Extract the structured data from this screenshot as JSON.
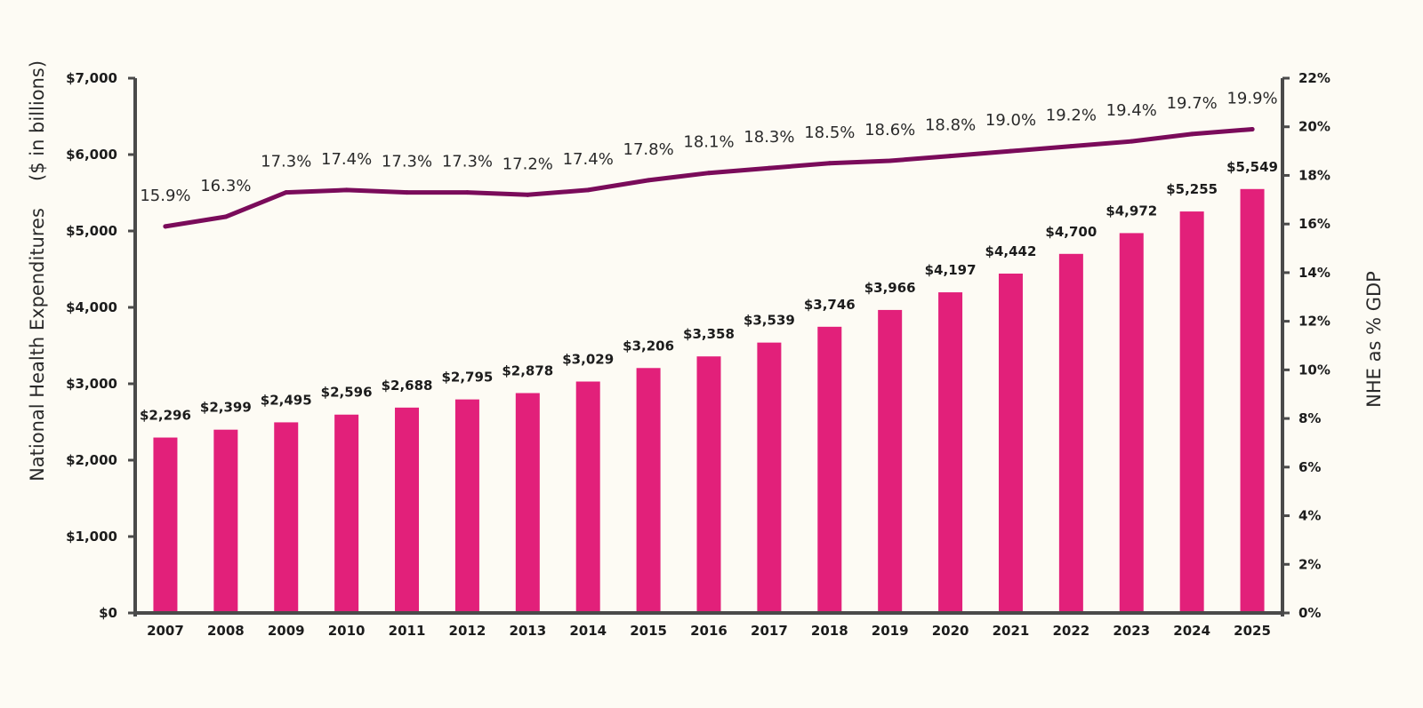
{
  "chart_data": {
    "type": "bar",
    "title": "",
    "categories": [
      "2007",
      "2008",
      "2009",
      "2010",
      "2011",
      "2012",
      "2013",
      "2014",
      "2015",
      "2016",
      "2017",
      "2018",
      "2019",
      "2020",
      "2021",
      "2022",
      "2023",
      "2024",
      "2025"
    ],
    "series": [
      {
        "type": "bar",
        "axis": "left",
        "values": [
          2296,
          2399,
          2495,
          2596,
          2688,
          2795,
          2878,
          3029,
          3206,
          3358,
          3539,
          3746,
          3966,
          4197,
          4442,
          4700,
          4972,
          5255,
          5549
        ],
        "labels": [
          "$2,296",
          "$2,399",
          "$2,495",
          "$2,596",
          "$2,688",
          "$2,795",
          "$2,878",
          "$3,029",
          "$3,206",
          "$3,358",
          "$3,539",
          "$3,746",
          "$3,966",
          "$4,197",
          "$4,442",
          "$4,700",
          "$4,972",
          "$5,255",
          "$5,549"
        ],
        "color": "#e2207a"
      },
      {
        "type": "line",
        "axis": "right",
        "values": [
          15.9,
          16.3,
          17.3,
          17.4,
          17.3,
          17.3,
          17.2,
          17.4,
          17.8,
          18.1,
          18.3,
          18.5,
          18.6,
          18.8,
          19.0,
          19.2,
          19.4,
          19.7,
          19.9
        ],
        "labels": [
          "15.9%",
          "16.3%",
          "17.3%",
          "17.4%",
          "17.3%",
          "17.3%",
          "17.2%",
          "17.4%",
          "17.8%",
          "18.1%",
          "18.3%",
          "18.5%",
          "18.6%",
          "18.8%",
          "19.0%",
          "19.2%",
          "19.4%",
          "19.7%",
          "19.9%"
        ],
        "color": "#7a0b5a"
      }
    ],
    "ylabel": "National Health Expenditures",
    "ylabel_unit": "($ in billions)",
    "y2label": "NHE as % GDP",
    "ylim": [
      0,
      7000
    ],
    "y2lim": [
      0,
      22
    ],
    "yticks": [
      "$0",
      "$1,000",
      "$2,000",
      "$3,000",
      "$4,000",
      "$5,000",
      "$6,000",
      "$7,000"
    ],
    "y2ticks": [
      "0%",
      "2%",
      "4%",
      "6%",
      "8%",
      "10%",
      "12%",
      "14%",
      "16%",
      "18%",
      "20%",
      "22%"
    ],
    "grid": false,
    "axis_color": "#4a4a4a"
  }
}
